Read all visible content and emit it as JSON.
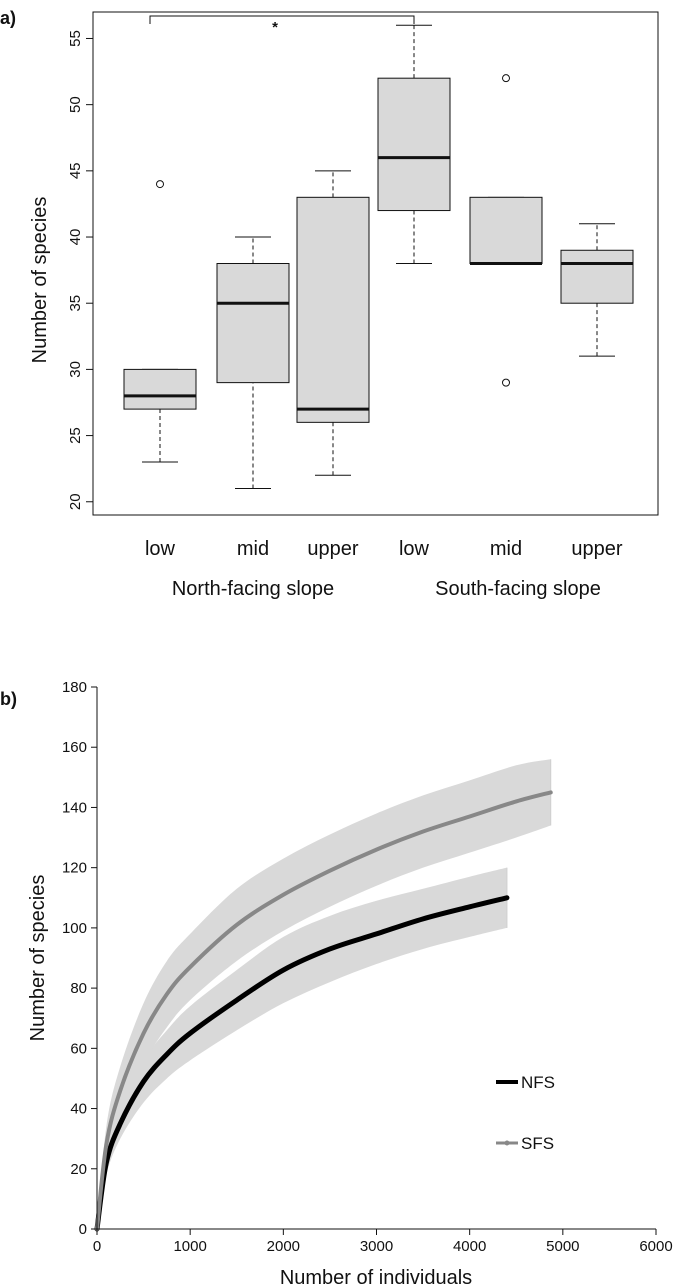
{
  "chart_data": [
    {
      "type": "box",
      "panel_label": "a)",
      "ylabel": "Number of species",
      "ylim": [
        19,
        57
      ],
      "yticks": [
        20,
        25,
        30,
        35,
        40,
        45,
        50,
        55
      ],
      "categories": [
        "low",
        "mid",
        "upper",
        "low",
        "mid",
        "upper"
      ],
      "groups": [
        {
          "label": "North-facing slope",
          "categories": [
            0,
            1,
            2
          ]
        },
        {
          "label": "South-facing slope",
          "categories": [
            3,
            4,
            5
          ]
        }
      ],
      "boxes": [
        {
          "min": 23,
          "q1": 27,
          "median": 28,
          "q3": 30,
          "max": 30,
          "outliers": [
            44
          ]
        },
        {
          "min": 21,
          "q1": 29,
          "median": 35,
          "q3": 38,
          "max": 40,
          "outliers": []
        },
        {
          "min": 22,
          "q1": 26,
          "median": 27,
          "q3": 43,
          "max": 45,
          "outliers": []
        },
        {
          "min": 38,
          "q1": 42,
          "median": 46,
          "q3": 52,
          "max": 56,
          "outliers": []
        },
        {
          "min": 38,
          "q1": 38,
          "median": 38,
          "q3": 43,
          "max": 43,
          "outliers": [
            52,
            29
          ]
        },
        {
          "min": 31,
          "q1": 35,
          "median": 38,
          "q3": 39,
          "max": 41,
          "outliers": []
        }
      ],
      "significance": {
        "from": 0,
        "to": 3,
        "label": "*"
      },
      "box_fill": "#d9d9d9"
    },
    {
      "type": "line",
      "panel_label": "b)",
      "xlabel": "Number of individuals",
      "ylabel": "Number of species",
      "xlim": [
        0,
        6000
      ],
      "ylim": [
        0,
        180
      ],
      "xticks": [
        0,
        1000,
        2000,
        3000,
        4000,
        5000,
        6000
      ],
      "yticks": [
        0,
        20,
        40,
        60,
        80,
        100,
        120,
        140,
        160,
        180
      ],
      "series": [
        {
          "name": "NFS",
          "color": "#000000",
          "x": [
            0,
            100,
            250,
            500,
            750,
            1000,
            1500,
            2000,
            2500,
            3000,
            3500,
            4000,
            4400
          ],
          "y": [
            0,
            22,
            35,
            49,
            58,
            65,
            76,
            86,
            93,
            98,
            103,
            107,
            110
          ],
          "ci_lower": [
            0,
            18,
            30,
            42,
            50,
            56,
            66,
            75,
            82,
            88,
            93,
            97,
            100
          ],
          "ci_upper": [
            0,
            26,
            40,
            56,
            66,
            74,
            86,
            97,
            104,
            109,
            113,
            117,
            120
          ]
        },
        {
          "name": "SFS",
          "color": "#888888",
          "x": [
            0,
            100,
            250,
            500,
            750,
            1000,
            1500,
            2000,
            2500,
            3000,
            3500,
            4000,
            4500,
            4870
          ],
          "y": [
            0,
            28,
            46,
            65,
            78,
            87,
            101,
            111,
            119,
            126,
            132,
            137,
            142,
            145
          ],
          "ci_lower": [
            0,
            22,
            38,
            55,
            67,
            76,
            89,
            99,
            107,
            114,
            120,
            125,
            130,
            134
          ],
          "ci_upper": [
            0,
            34,
            54,
            75,
            89,
            98,
            113,
            123,
            131,
            138,
            144,
            149,
            154,
            156
          ]
        }
      ],
      "ci_fill": "#d9d9d9",
      "legend_position": "bottom-right"
    }
  ]
}
